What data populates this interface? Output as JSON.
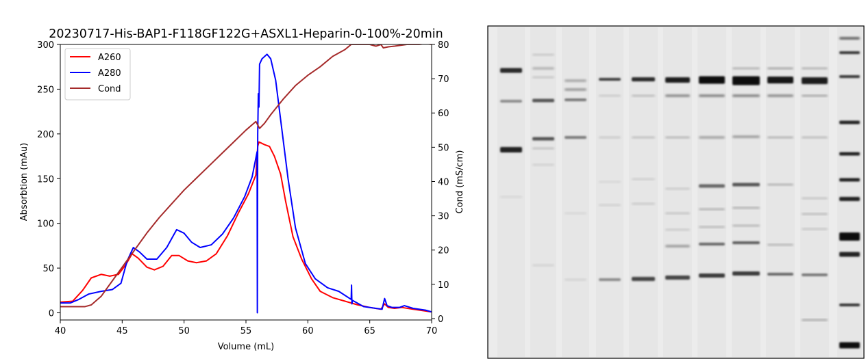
{
  "chart_data": [
    {
      "type": "line",
      "title": "20230717-His-BAP1-F118GF122G+ASXL1-Heparin-0-100%-20min",
      "xlabel": "Volume (mL)",
      "ylabel": "Absorbtion (mAu)",
      "y2label": "Cond (mS/cm)",
      "xlim": [
        40,
        70
      ],
      "ylim": [
        -8,
        300
      ],
      "y2lim": [
        -0.4,
        80
      ],
      "xticks": [
        40,
        45,
        50,
        55,
        60,
        65,
        70
      ],
      "yticks": [
        0,
        50,
        100,
        150,
        200,
        250,
        300
      ],
      "y2ticks": [
        0,
        10,
        20,
        30,
        40,
        50,
        60,
        70,
        80
      ],
      "grid": false,
      "legend": "top-left",
      "series": [
        {
          "name": "A260",
          "color": "#ff0000",
          "axis": "left",
          "x": [
            40,
            41,
            41.8,
            42.5,
            43.3,
            44,
            44.7,
            45.3,
            45.8,
            46.3,
            47,
            47.6,
            48.3,
            49,
            49.6,
            50.3,
            51,
            51.8,
            52.6,
            53.5,
            54.4,
            55.2,
            55.8,
            55.95,
            56.05,
            56.2,
            56.5,
            56.9,
            57.3,
            57.8,
            58.2,
            58.8,
            59.5,
            60.3,
            61,
            62,
            63,
            64,
            65,
            65.9,
            66.2,
            66.5,
            67,
            67.6,
            68.5,
            69.5,
            70
          ],
          "y": [
            12,
            13,
            25,
            39,
            43,
            41,
            43,
            54,
            66,
            61,
            51,
            48,
            52,
            64,
            64,
            58,
            56,
            58,
            66,
            86,
            112,
            133,
            154,
            186,
            191,
            190,
            188,
            186,
            175,
            155,
            125,
            85,
            60,
            38,
            24,
            17,
            13,
            9,
            6,
            4,
            10,
            6,
            5,
            6,
            4,
            2,
            1
          ]
        },
        {
          "name": "A280",
          "color": "#0000ff",
          "axis": "left",
          "x": [
            40,
            40.8,
            41.5,
            42.3,
            43.3,
            44.2,
            44.9,
            45.4,
            45.9,
            46.4,
            47,
            47.8,
            48.6,
            49.4,
            50,
            50.6,
            51.3,
            52.2,
            53.1,
            54,
            54.9,
            55.5,
            55.9,
            55.92,
            55.95,
            56.0,
            56.05,
            56.1,
            56.3,
            56.7,
            57.0,
            57.4,
            57.9,
            58.4,
            59,
            59.8,
            60.6,
            61.6,
            62.5,
            63.5,
            63.53,
            63.56,
            63.6,
            64.5,
            65.5,
            66,
            66.2,
            66.4,
            66.8,
            67.4,
            67.8,
            68.5,
            69.5,
            70
          ],
          "y": [
            11,
            11,
            15,
            21,
            24,
            26,
            33,
            58,
            73,
            68,
            60,
            60,
            73,
            93,
            89,
            79,
            73,
            76,
            88,
            106,
            130,
            152,
            180,
            0,
            200,
            245,
            230,
            278,
            284,
            289,
            284,
            260,
            205,
            150,
            95,
            55,
            38,
            28,
            24,
            15,
            31,
            10,
            14,
            7,
            5,
            4,
            16,
            8,
            6,
            6,
            8,
            5,
            3,
            1
          ]
        },
        {
          "name": "Cond",
          "color": "#a52a2a",
          "axis": "right",
          "x": [
            40,
            41,
            42,
            42.5,
            43.3,
            44.2,
            45,
            46,
            47,
            48,
            49,
            50,
            51,
            52,
            53,
            54,
            55,
            55.8,
            56.1,
            56.5,
            57,
            58,
            59,
            60,
            61,
            62,
            63,
            63.5,
            64,
            65,
            65.5,
            65.9,
            66.1,
            66.5,
            67,
            68,
            69,
            69.5,
            70
          ],
          "y": [
            3.5,
            3.5,
            3.5,
            4.0,
            6.5,
            11,
            15,
            20,
            25,
            29.5,
            33.5,
            37.5,
            41,
            44.5,
            48,
            51.5,
            55,
            57.5,
            55.5,
            57,
            59.5,
            64,
            68,
            71,
            73.5,
            76.5,
            78.5,
            80,
            80,
            80,
            79.5,
            80,
            79,
            79.3,
            79.5,
            80,
            80,
            80.2,
            80
          ]
        }
      ]
    },
    {
      "type": "other",
      "gel_image": {
        "lane_count": 11,
        "background": "#ececec",
        "band_color": "#1a1a1a"
      }
    }
  ],
  "legend": {
    "items": [
      "A260",
      "A280",
      "Cond"
    ]
  }
}
